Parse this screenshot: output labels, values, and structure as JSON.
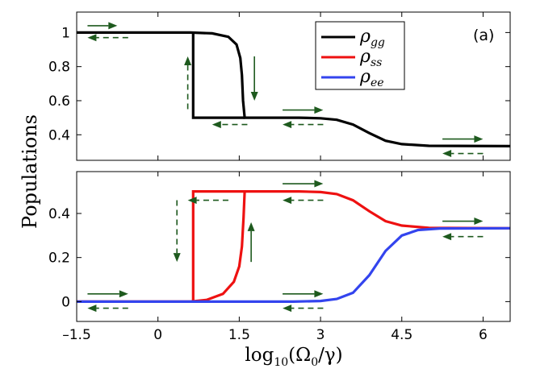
{
  "chart_data": [
    {
      "type": "line",
      "panel_label": "(a)",
      "xlim": [
        -1.5,
        6.5
      ],
      "ylim": [
        0.25,
        1.12
      ],
      "yticks": [
        0.4,
        0.6,
        0.8,
        1.0
      ],
      "ytick_labels": [
        "0.4",
        "0.6",
        "0.8",
        "1"
      ],
      "legend": {
        "placement": "top-right",
        "entries": [
          {
            "main": "ρ",
            "sub": "gg",
            "color": "#000000"
          },
          {
            "main": "ρ",
            "sub": "ss",
            "color": "#ee1111"
          },
          {
            "main": "ρ",
            "sub": "ee",
            "color": "#3344ee"
          }
        ]
      },
      "series": [
        {
          "name": "ρgg (upper branch)",
          "color": "#000000",
          "x": [
            -1.5,
            0.6,
            1.0,
            1.3,
            1.45,
            1.52,
            1.55,
            1.57,
            1.6,
            2.6,
            3.0,
            3.3,
            3.6,
            3.9,
            4.2,
            4.5,
            5.0,
            6.5
          ],
          "y": [
            1.0,
            1.0,
            0.995,
            0.975,
            0.93,
            0.85,
            0.75,
            0.6,
            0.5,
            0.5,
            0.497,
            0.488,
            0.46,
            0.41,
            0.365,
            0.345,
            0.335,
            0.333
          ]
        },
        {
          "name": "ρgg (lower branch jump)",
          "color": "#000000",
          "x": [
            0.65,
            0.65,
            1.6
          ],
          "y": [
            1.0,
            0.5,
            0.5
          ]
        }
      ],
      "arrows": [
        {
          "x0": -1.3,
          "x1": -0.75,
          "y": 1.04,
          "dir": "right",
          "dashed": false
        },
        {
          "x0": -1.3,
          "x1": -0.55,
          "y": 0.97,
          "dir": "left",
          "dashed": true
        },
        {
          "x0": 1.0,
          "x1": 1.65,
          "y": 0.46,
          "dir": "left",
          "dashed": true
        },
        {
          "x0": 2.3,
          "x1": 3.05,
          "y": 0.545,
          "dir": "right",
          "dashed": false
        },
        {
          "x0": 2.3,
          "x1": 3.05,
          "y": 0.46,
          "dir": "left",
          "dashed": true
        },
        {
          "x0": 5.25,
          "x1": 6.0,
          "y": 0.375,
          "dir": "right",
          "dashed": false
        },
        {
          "x0": 5.25,
          "x1": 6.0,
          "y": 0.29,
          "dir": "left",
          "dashed": true
        },
        {
          "x": 0.55,
          "y0": 0.55,
          "y1": 0.86,
          "dir": "up",
          "dashed": true
        },
        {
          "x": 1.78,
          "y0": 0.86,
          "y1": 0.6,
          "dir": "down",
          "dashed": false
        }
      ]
    },
    {
      "type": "line",
      "xlim": [
        -1.5,
        6.5
      ],
      "ylim": [
        -0.09,
        0.59
      ],
      "xticks": [
        -1.5,
        0,
        1.5,
        3,
        4.5,
        6
      ],
      "xtick_labels": [
        "–1.5",
        "0",
        "1.5",
        "3",
        "4.5",
        "6"
      ],
      "yticks": [
        0,
        0.2,
        0.4
      ],
      "ytick_labels": [
        "0",
        "0.2",
        "0.4"
      ],
      "ylabel": "Populations",
      "xlabel": {
        "pre": "log",
        "sub": "10",
        "post": "(Ω",
        "sub2": "0",
        "tail": "/γ)"
      },
      "series": [
        {
          "name": "ρss (upper branch)",
          "color": "#ee1111",
          "x": [
            -1.5,
            0.6,
            0.9,
            1.2,
            1.4,
            1.5,
            1.55,
            1.58,
            1.6,
            2.6,
            3.0,
            3.3,
            3.6,
            3.9,
            4.2,
            4.5,
            5.0,
            6.5
          ],
          "y": [
            0.0,
            0.0,
            0.008,
            0.035,
            0.09,
            0.16,
            0.25,
            0.38,
            0.5,
            0.5,
            0.497,
            0.488,
            0.46,
            0.41,
            0.365,
            0.345,
            0.335,
            0.333
          ]
        },
        {
          "name": "ρss (lower branch jump)",
          "color": "#ee1111",
          "x": [
            0.65,
            0.65,
            1.6
          ],
          "y": [
            0.0,
            0.5,
            0.5
          ]
        },
        {
          "name": "ρee",
          "color": "#3344ee",
          "x": [
            -1.5,
            2.5,
            3.0,
            3.3,
            3.6,
            3.9,
            4.2,
            4.5,
            4.8,
            5.2,
            6.5
          ],
          "y": [
            0.0,
            0.0,
            0.003,
            0.012,
            0.04,
            0.12,
            0.23,
            0.3,
            0.325,
            0.332,
            0.333
          ]
        }
      ],
      "arrows": [
        {
          "x0": -1.3,
          "x1": -0.55,
          "y": 0.035,
          "dir": "right",
          "dashed": false
        },
        {
          "x0": -1.3,
          "x1": -0.55,
          "y": -0.03,
          "dir": "left",
          "dashed": true
        },
        {
          "x0": 0.55,
          "x1": 1.3,
          "y": 0.46,
          "dir": "left",
          "dashed": true
        },
        {
          "x0": 2.3,
          "x1": 3.05,
          "y": 0.535,
          "dir": "right",
          "dashed": false
        },
        {
          "x0": 2.3,
          "x1": 3.05,
          "y": 0.46,
          "dir": "left",
          "dashed": true
        },
        {
          "x0": 2.3,
          "x1": 3.05,
          "y": 0.035,
          "dir": "right",
          "dashed": false
        },
        {
          "x0": 2.3,
          "x1": 3.05,
          "y": -0.03,
          "dir": "left",
          "dashed": true
        },
        {
          "x0": 5.25,
          "x1": 6.0,
          "y": 0.365,
          "dir": "right",
          "dashed": false
        },
        {
          "x0": 5.25,
          "x1": 6.0,
          "y": 0.295,
          "dir": "left",
          "dashed": true
        },
        {
          "x": 0.35,
          "y0": 0.46,
          "y1": 0.18,
          "dir": "down",
          "dashed": true
        },
        {
          "x": 1.72,
          "y0": 0.18,
          "y1": 0.36,
          "dir": "up",
          "dashed": false
        }
      ]
    }
  ],
  "arrow_color": "#1e5a1e"
}
